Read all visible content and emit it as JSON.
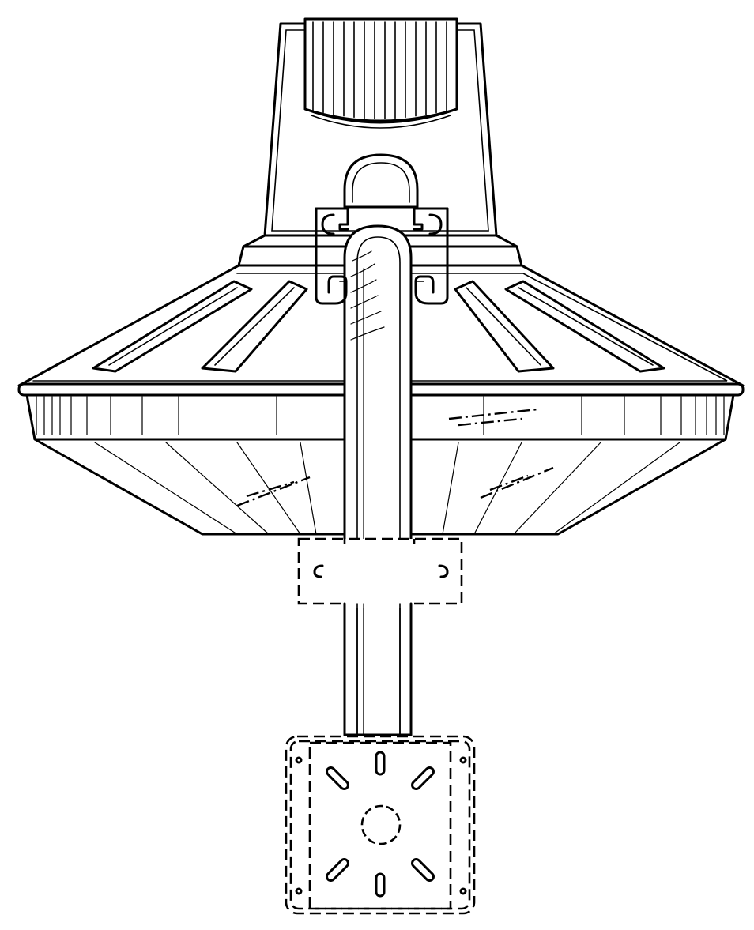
{
  "figure": {
    "subject": "",
    "parts": [
      "fixture-housing",
      "heat-sink-fins",
      "photocell-dome",
      "mounting-clamp",
      "reflector-shade",
      "lens-ring",
      "diffuser-lens",
      "support-arm",
      "pole-bracket",
      "junction-box-plate"
    ],
    "line_color": "#000000",
    "background_color": "#ffffff",
    "broken_line_parts": [
      "pole-bracket",
      "junction-box-plate"
    ]
  }
}
